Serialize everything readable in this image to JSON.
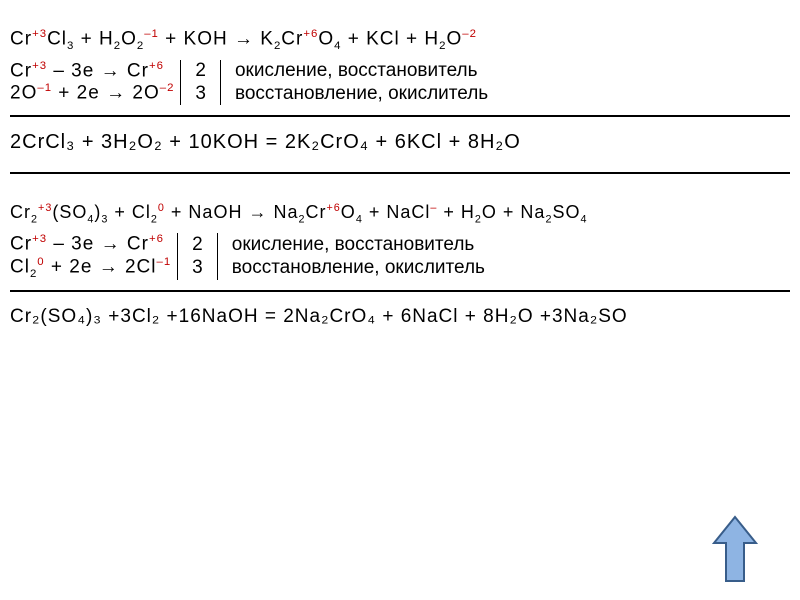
{
  "section1": {
    "main_eq_parts": [
      {
        "t": "Cr",
        "cls": ""
      },
      {
        "t": "+3",
        "cls": "red",
        "sup": true
      },
      {
        "t": "Cl",
        "cls": ""
      },
      {
        "t": "3",
        "cls": "",
        "sub": true
      },
      {
        "t": "   +   H",
        "cls": ""
      },
      {
        "t": "2",
        "cls": "",
        "sub": true
      },
      {
        "t": "O",
        "cls": ""
      },
      {
        "t": "2",
        "cls": "",
        "sub": true
      },
      {
        "t": "–1",
        "cls": "red",
        "sup": true
      },
      {
        "t": "   +   KOH  →  K",
        "cls": ""
      },
      {
        "t": "2",
        "cls": "",
        "sub": true
      },
      {
        "t": "Cr",
        "cls": ""
      },
      {
        "t": "+6",
        "cls": "red",
        "sup": true
      },
      {
        "t": "O",
        "cls": ""
      },
      {
        "t": "4",
        "cls": "",
        "sub": true
      },
      {
        "t": "  +  KCl   +   H",
        "cls": ""
      },
      {
        "t": "2",
        "cls": "",
        "sub": true
      },
      {
        "t": "O",
        "cls": ""
      },
      {
        "t": "–2",
        "cls": "red",
        "sup": true
      }
    ],
    "hr1_parts": [
      {
        "t": "Cr",
        "cls": ""
      },
      {
        "t": "+3",
        "cls": "red",
        "sup": true
      },
      {
        "t": "   –   3e   →   Cr",
        "cls": ""
      },
      {
        "t": "+6",
        "cls": "red",
        "sup": true
      }
    ],
    "hr2_parts": [
      {
        "t": "2O",
        "cls": ""
      },
      {
        "t": "–1",
        "cls": "red",
        "sup": true
      },
      {
        "t": "   +   2e   →   2O",
        "cls": ""
      },
      {
        "t": "–2",
        "cls": "red",
        "sup": true
      }
    ],
    "coef1": "2",
    "coef2": "3",
    "desc1": "окисление, восстановитель",
    "desc2": "восстановление, окислитель",
    "balanced": "2CrCl₃  + 3H₂O₂  + 10KOH   =  2K₂CrO₄  +  6KCl  + 8H₂O"
  },
  "section2": {
    "main_eq_parts": [
      {
        "t": "Cr",
        "cls": ""
      },
      {
        "t": "2",
        "cls": "",
        "sub": true
      },
      {
        "t": "+3",
        "cls": "red",
        "sup": true
      },
      {
        "t": "(SO",
        "cls": ""
      },
      {
        "t": "4",
        "cls": "",
        "sub": true
      },
      {
        "t": ")",
        "cls": ""
      },
      {
        "t": "3",
        "cls": "",
        "sub": true
      },
      {
        "t": "   + Cl",
        "cls": ""
      },
      {
        "t": "2",
        "cls": "",
        "sub": true
      },
      {
        "t": "0",
        "cls": "red",
        "sup": true
      },
      {
        "t": " + NaOH → Na",
        "cls": ""
      },
      {
        "t": "2",
        "cls": "",
        "sub": true
      },
      {
        "t": "Cr",
        "cls": ""
      },
      {
        "t": "+6",
        "cls": "red",
        "sup": true
      },
      {
        "t": "O",
        "cls": ""
      },
      {
        "t": "4",
        "cls": "",
        "sub": true
      },
      {
        "t": " + NaCl",
        "cls": ""
      },
      {
        "t": "–",
        "cls": "red",
        "sup": true
      },
      {
        "t": " + H",
        "cls": ""
      },
      {
        "t": "2",
        "cls": "",
        "sub": true
      },
      {
        "t": "O + Na",
        "cls": ""
      },
      {
        "t": "2",
        "cls": "",
        "sub": true
      },
      {
        "t": "SO",
        "cls": ""
      },
      {
        "t": "4",
        "cls": "",
        "sub": true
      }
    ],
    "hr1_parts": [
      {
        "t": "Cr",
        "cls": ""
      },
      {
        "t": "+3",
        "cls": "red",
        "sup": true
      },
      {
        "t": "   –   3e   →   Cr",
        "cls": ""
      },
      {
        "t": "+6",
        "cls": "red",
        "sup": true
      }
    ],
    "hr2_parts": [
      {
        "t": "Cl",
        "cls": ""
      },
      {
        "t": "2",
        "cls": "",
        "sub": true
      },
      {
        "t": "0",
        "cls": "red",
        "sup": true
      },
      {
        "t": "   +   2e   →   2Cl",
        "cls": ""
      },
      {
        "t": "–1",
        "cls": "red",
        "sup": true
      }
    ],
    "coef1": "2",
    "coef2": "3",
    "desc1": "окисление, восстановитель",
    "desc2": "восстановление, окислитель",
    "balanced": "Cr₂(SO₄)₃ +3Cl₂ +16NaOH = 2Na₂CrO₄ + 6NaCl + 8H₂O +3Na₂SO"
  },
  "style": {
    "text_color": "#000000",
    "ox_color": "#c00000",
    "arrow_fill": "#8eb4e3",
    "arrow_stroke": "#385d8a",
    "font_size": 19
  }
}
